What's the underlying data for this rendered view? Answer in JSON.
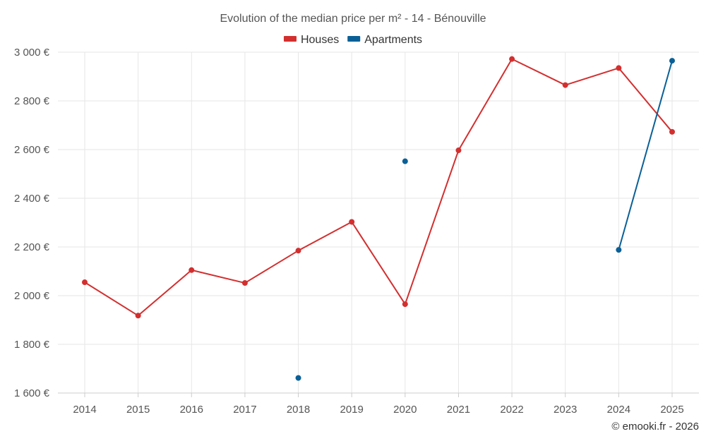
{
  "chart_data": {
    "type": "line",
    "title": "Evolution of the median price per m² - 14 - Bénouville",
    "categories": [
      "2014",
      "2015",
      "2016",
      "2017",
      "2018",
      "2019",
      "2020",
      "2021",
      "2022",
      "2023",
      "2024",
      "2025"
    ],
    "ylim": [
      1600,
      3000
    ],
    "yticks": [
      1600,
      1800,
      2000,
      2200,
      2400,
      2600,
      2800,
      3000
    ],
    "ytick_labels": [
      "1 600 €",
      "1 800 €",
      "2 000 €",
      "2 200 €",
      "2 400 €",
      "2 600 €",
      "2 800 €",
      "3 000 €"
    ],
    "grid": true,
    "legend_position": "top-center",
    "series": [
      {
        "name": "Houses",
        "color": "#d32f2f",
        "values": [
          2055,
          1918,
          2105,
          2052,
          2185,
          2303,
          1965,
          2597,
          2972,
          2865,
          2935,
          2673
        ]
      },
      {
        "name": "Apartments",
        "color": "#0a6096",
        "values": [
          null,
          null,
          null,
          null,
          1662,
          null,
          2552,
          null,
          null,
          null,
          2188,
          2965
        ]
      }
    ],
    "copyright": "© emooki.fr - 2026"
  }
}
